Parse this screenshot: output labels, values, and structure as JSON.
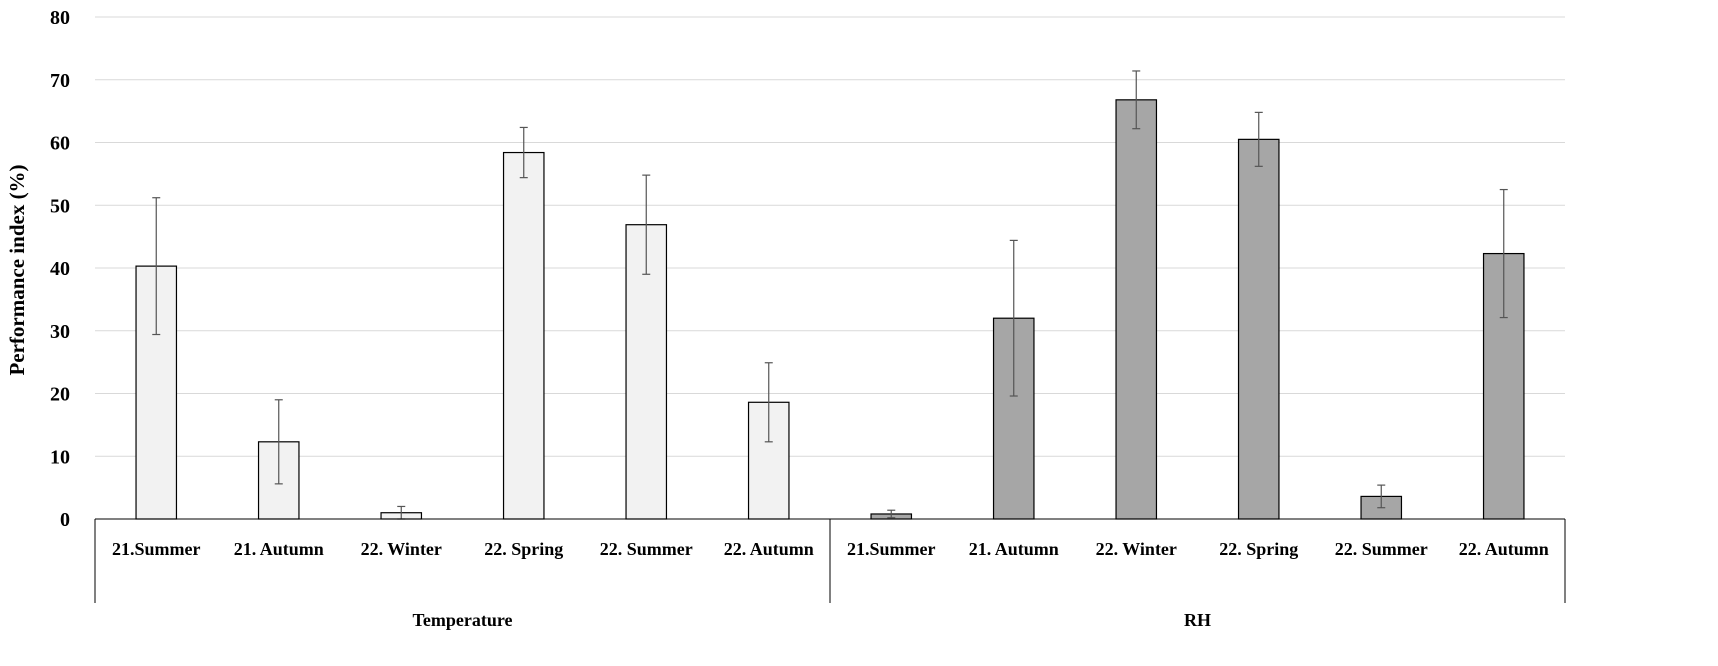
{
  "chart_data": {
    "type": "bar",
    "ylabel": "Performance index (%)",
    "ylim": [
      0,
      80
    ],
    "yticks": [
      0,
      10,
      20,
      30,
      40,
      50,
      60,
      70,
      80
    ],
    "grid": true,
    "groups": [
      {
        "name": "Temperature",
        "color": "#f2f2f2",
        "categories": [
          "21.Summer",
          "21. Autumn",
          "22. Winter",
          "22. Spring",
          "22. Summer",
          "22. Autumn"
        ],
        "values": [
          40.3,
          12.3,
          1.0,
          58.4,
          46.9,
          18.6
        ],
        "errors": [
          10.9,
          6.7,
          1.0,
          4.0,
          7.9,
          6.3
        ]
      },
      {
        "name": "RH",
        "color": "#a6a6a6",
        "categories": [
          "21.Summer",
          "21. Autumn",
          "22. Winter",
          "22. Spring",
          "22. Summer",
          "22. Autumn"
        ],
        "values": [
          0.8,
          32.0,
          66.8,
          60.5,
          3.6,
          42.3
        ],
        "errors": [
          0.6,
          12.4,
          4.6,
          4.3,
          1.8,
          10.2
        ]
      }
    ]
  }
}
